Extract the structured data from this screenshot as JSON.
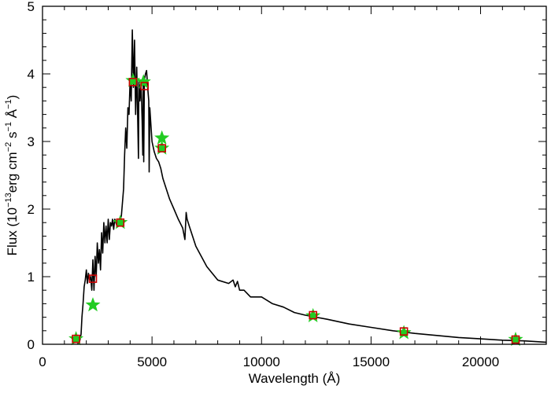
{
  "chart_data": {
    "type": "scatter",
    "xlabel": "Wavelength (Å)",
    "ylabel": {
      "prefix": "Flux (10",
      "exp1": "−13",
      "mid1": "erg cm",
      "exp2": "−2",
      "mid2": " s",
      "exp3": "−1",
      "mid3": " Å",
      "exp4": "−1",
      "suffix": ")"
    },
    "xlim": [
      0,
      23000
    ],
    "ylim": [
      0,
      5
    ],
    "xticks": [
      0,
      5000,
      10000,
      15000,
      20000
    ],
    "xtick_labels": [
      "0",
      "5000",
      "10000",
      "15000",
      "20000"
    ],
    "yticks": [
      0,
      1,
      2,
      3,
      4,
      5
    ],
    "ytick_labels": [
      "0",
      "1",
      "2",
      "3",
      "4",
      "5"
    ],
    "grid": false,
    "colors": {
      "model_line": "#000000",
      "observed_star": "#22cc22",
      "synthetic_square": "#cc0000"
    },
    "series": [
      {
        "kind": "line",
        "x": [
          1600,
          1700,
          1760,
          1800,
          1850,
          1900,
          1950,
          2000,
          2050,
          2100,
          2150,
          2200,
          2250,
          2300,
          2350,
          2400,
          2450,
          2500,
          2550,
          2600,
          2650,
          2700,
          2750,
          2800,
          2850,
          2900,
          2950,
          3000,
          3050,
          3100,
          3150,
          3200,
          3250,
          3300,
          3400,
          3500,
          3600,
          3700,
          3750,
          3800,
          3850,
          3900,
          3950,
          4000,
          4050,
          4100,
          4150,
          4200,
          4250,
          4300,
          4350,
          4380,
          4400,
          4450,
          4500,
          4550,
          4580,
          4600,
          4620,
          4650,
          4700,
          4750,
          4800,
          4850,
          4870,
          4900,
          5000,
          5100,
          5200,
          5300,
          5400,
          5500,
          5600,
          5800,
          6000,
          6200,
          6400,
          6500,
          6560,
          6600,
          6700,
          7000,
          7500,
          8000,
          8500,
          8700,
          8800,
          8900,
          9000,
          9200,
          9500,
          10000,
          10500,
          11000,
          11500,
          12000,
          12500,
          13000,
          14000,
          15000,
          16000,
          17000,
          18000,
          19000,
          20000,
          21000,
          22000,
          23000
        ],
        "y": [
          0.0,
          0.05,
          0.15,
          0.4,
          0.6,
          0.85,
          0.95,
          1.1,
          0.9,
          1.05,
          0.95,
          1.0,
          0.8,
          1.25,
          0.8,
          1.3,
          1.0,
          1.5,
          1.2,
          1.4,
          1.1,
          1.65,
          1.35,
          1.8,
          1.5,
          1.75,
          1.5,
          1.85,
          1.55,
          1.8,
          1.75,
          1.85,
          1.7,
          1.85,
          1.75,
          1.8,
          1.9,
          2.3,
          2.8,
          3.2,
          2.9,
          3.5,
          3.4,
          3.9,
          3.6,
          4.65,
          3.8,
          4.5,
          3.4,
          4.1,
          3.3,
          2.75,
          3.9,
          3.6,
          3.85,
          3.3,
          2.8,
          3.85,
          2.7,
          3.9,
          4.0,
          4.05,
          3.8,
          3.6,
          2.55,
          3.5,
          3.0,
          2.85,
          2.75,
          2.7,
          2.6,
          2.45,
          2.35,
          2.15,
          2.0,
          1.85,
          1.72,
          1.55,
          1.95,
          1.85,
          1.75,
          1.45,
          1.15,
          0.95,
          0.9,
          0.95,
          0.85,
          0.93,
          0.8,
          0.8,
          0.7,
          0.7,
          0.6,
          0.55,
          0.47,
          0.43,
          0.4,
          0.37,
          0.3,
          0.25,
          0.2,
          0.16,
          0.13,
          0.1,
          0.08,
          0.06,
          0.05,
          0.03
        ]
      },
      {
        "kind": "scatter",
        "marker": "star",
        "x": [
          1530,
          2300,
          3550,
          4130,
          4610,
          5450,
          5450,
          12350,
          16500,
          21600
        ],
        "y": [
          0.08,
          0.58,
          1.8,
          3.9,
          3.88,
          3.05,
          2.9,
          0.42,
          0.17,
          0.07
        ]
      },
      {
        "kind": "scatter",
        "marker": "square",
        "x": [
          1530,
          2300,
          3550,
          4130,
          4660,
          5450,
          12350,
          16500,
          21600
        ],
        "y": [
          0.08,
          0.97,
          1.8,
          3.88,
          3.82,
          2.9,
          0.43,
          0.19,
          0.07
        ]
      }
    ]
  }
}
